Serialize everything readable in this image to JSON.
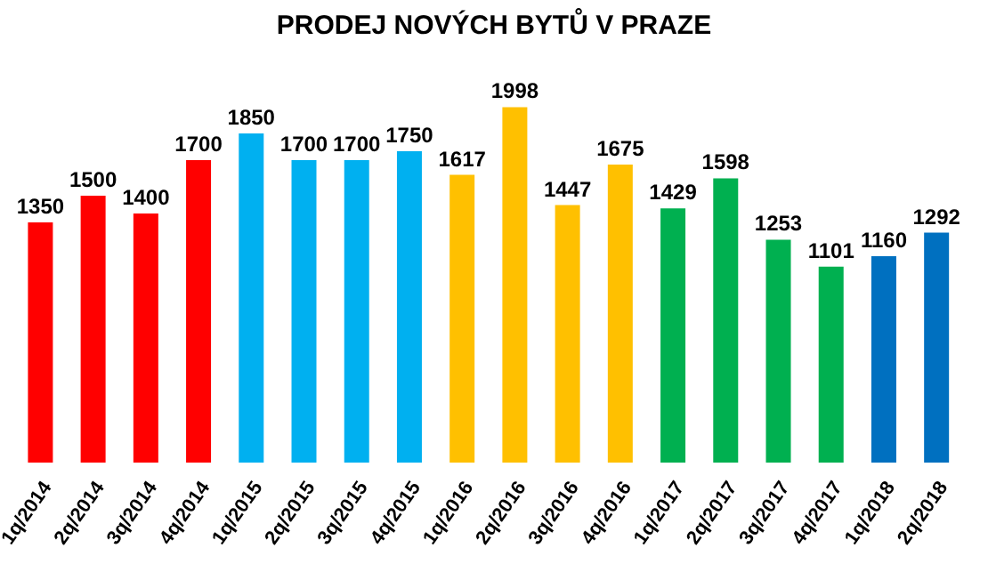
{
  "chart_data": {
    "type": "bar",
    "title": "PRODEJ NOVÝCH BYTŮ V PRAZE",
    "categories": [
      "1q/2014",
      "2q/2014",
      "3q/2014",
      "4q/2014",
      "1q/2015",
      "2q/2015",
      "3q/2015",
      "4q/2015",
      "1q/2016",
      "2q/2016",
      "3q/2016",
      "4q/2016",
      "1q/2017",
      "2q/2017",
      "3q/2017",
      "4q/2017",
      "1q/2018",
      "2q/2018"
    ],
    "values": [
      1350,
      1500,
      1400,
      1700,
      1850,
      1700,
      1700,
      1750,
      1617,
      1998,
      1447,
      1675,
      1429,
      1598,
      1253,
      1101,
      1160,
      1292
    ],
    "colors": [
      "#ff0000",
      "#ff0000",
      "#ff0000",
      "#ff0000",
      "#00b0f0",
      "#00b0f0",
      "#00b0f0",
      "#00b0f0",
      "#ffc000",
      "#ffc000",
      "#ffc000",
      "#ffc000",
      "#00b050",
      "#00b050",
      "#00b050",
      "#00b050",
      "#0070c0",
      "#0070c0"
    ],
    "data_labels": true
  }
}
